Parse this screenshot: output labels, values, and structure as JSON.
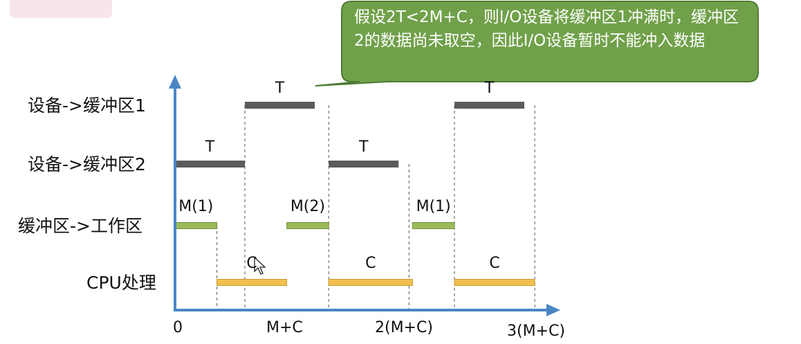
{
  "callout": {
    "text": "假设2T<2M+C，则I/O设备将缓冲区1冲满时，缓冲区2的数据尚未取空，因此I/O设备暂时不能冲入数据"
  },
  "rows": [
    {
      "label": "设备->缓冲区1"
    },
    {
      "label": "设备->缓冲区2"
    },
    {
      "label": "缓冲区->工作区"
    },
    {
      "label": "CPU处理"
    }
  ],
  "x_ticks": [
    "0",
    "M+C",
    "2(M+C)",
    "3(M+C)"
  ],
  "bars": [
    {
      "row": 0,
      "start": 1.0,
      "end": 2.0,
      "label": "T",
      "color": "#5b5b5b"
    },
    {
      "row": 0,
      "start": 4.0,
      "end": 5.0,
      "label": "T",
      "color": "#5b5b5b"
    },
    {
      "row": 1,
      "start": 0.0,
      "end": 1.0,
      "label": "T",
      "color": "#5b5b5b"
    },
    {
      "row": 1,
      "start": 2.2,
      "end": 3.2,
      "label": "T",
      "color": "#5b5b5b"
    },
    {
      "row": 2,
      "start": 0.0,
      "end": 0.6,
      "label": "M(1)",
      "color": "#9bbb59"
    },
    {
      "row": 2,
      "start": 1.6,
      "end": 2.2,
      "label": "M(2)",
      "color": "#9bbb59"
    },
    {
      "row": 2,
      "start": 3.4,
      "end": 4.0,
      "label": "M(1)",
      "color": "#9bbb59"
    },
    {
      "row": 3,
      "start": 0.6,
      "end": 1.6,
      "label": "C",
      "color": "#f2c04f"
    },
    {
      "row": 3,
      "start": 2.2,
      "end": 3.4,
      "label": "C",
      "color": "#f2c04f"
    },
    {
      "row": 3,
      "start": 4.0,
      "end": 5.15,
      "label": "C",
      "color": "#f2c04f"
    }
  ],
  "colors": {
    "axis": "#4a86c5",
    "callout_fill": "#70a14a",
    "callout_border": "#4e7a34",
    "guide": "#555555"
  }
}
